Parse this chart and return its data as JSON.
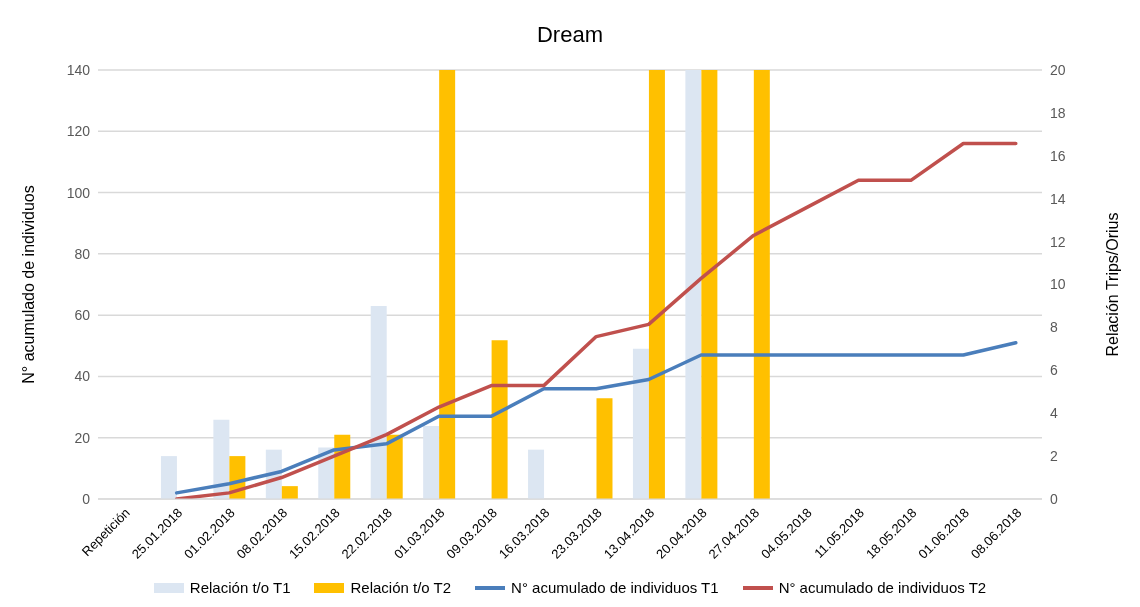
{
  "chart_data": {
    "type": "bar",
    "title": "Dream",
    "ylabel": "N° acumulado de individuos",
    "y2label": "Relación Trips/Orius",
    "categories": [
      "Repetición",
      "25.01.2018",
      "01.02.2018",
      "08.02.2018",
      "15.02.2018",
      "22.02.2018",
      "01.03.2018",
      "09.03.2018",
      "16.03.2018",
      "23.03.2018",
      "13.04.2018",
      "20.04.2018",
      "27.04.2018",
      "04.05.2018",
      "11.05.2018",
      "18.05.2018",
      "01.06.2018",
      "08.06.2018"
    ],
    "series": [
      {
        "name": "Relación t/o T1",
        "axis": "y2",
        "color": "#dce6f2",
        "values": [
          null,
          2.0,
          3.7,
          2.3,
          2.4,
          9.0,
          3.4,
          null,
          2.3,
          null,
          7.0,
          20,
          null,
          null,
          null,
          null,
          null,
          null
        ]
      },
      {
        "name": "Relación t/o T2",
        "axis": "y2",
        "color": "#ffc000",
        "values": [
          null,
          null,
          2.0,
          0.6,
          3.0,
          3.0,
          20,
          7.4,
          null,
          4.7,
          20,
          20,
          20,
          null,
          null,
          null,
          null,
          null
        ]
      },
      {
        "name": "N° acumulado de individuos T1",
        "type": "line",
        "color": "#4a7ebb",
        "values": [
          null,
          2,
          5,
          9,
          16,
          18,
          27,
          27,
          36,
          36,
          39,
          47,
          47,
          47,
          47,
          47,
          47,
          51
        ]
      },
      {
        "name": "N° acumulado de individuos T2",
        "type": "line",
        "color": "#c0504d",
        "values": [
          null,
          0,
          2,
          7,
          14,
          21,
          30,
          37,
          37,
          53,
          57,
          72,
          86,
          95,
          104,
          104,
          116,
          116
        ]
      }
    ],
    "ylim": [
      0,
      140
    ],
    "yticks": [
      0,
      20,
      40,
      60,
      80,
      100,
      120,
      140
    ],
    "y2lim": [
      0,
      20
    ],
    "y2ticks": [
      0,
      2,
      4,
      6,
      8,
      10,
      12,
      14,
      16,
      18,
      20
    ],
    "grid": "y",
    "legend": "bottom",
    "marker": "none",
    "line_style": "solid"
  }
}
